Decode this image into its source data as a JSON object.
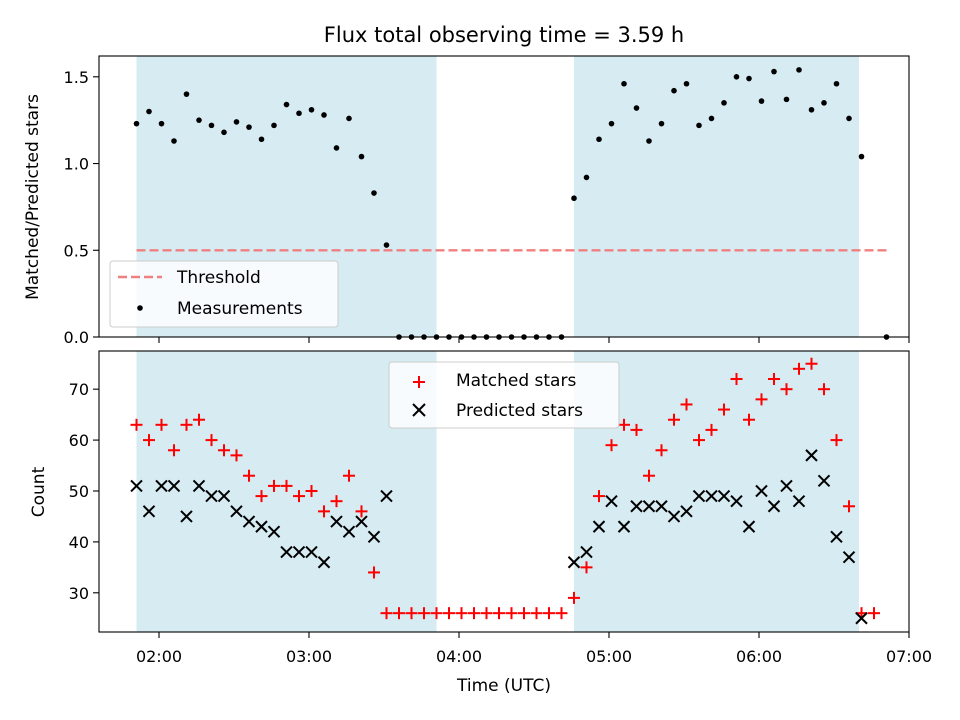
{
  "title": "Flux total observing time = 3.59 h",
  "colors": {
    "shade": "#add8e6",
    "threshold": "#f08080",
    "measurements": "#000000",
    "matched": "#ff0000",
    "predicted": "#000000"
  },
  "chart_data": [
    {
      "type": "scatter",
      "panel": "top",
      "ylabel": "Matched/Predicted stars",
      "ylim": [
        0,
        1.62
      ],
      "yticks": [
        0.0,
        0.5,
        1.0,
        1.5
      ],
      "ytick_labels": [
        "0.0",
        "0.5",
        "1.0",
        "1.5"
      ],
      "xlim": [
        "01:36",
        "07:00"
      ],
      "legend": {
        "placement": "lower-left",
        "entries": [
          "Threshold",
          "Measurements"
        ]
      },
      "shaded_intervals": [
        [
          "01:51",
          "03:51"
        ],
        [
          "04:46",
          "06:40"
        ]
      ],
      "threshold": {
        "name": "Threshold",
        "value": 0.5,
        "x_range": [
          "01:51",
          "06:51"
        ],
        "style": "dashed"
      },
      "series": [
        {
          "name": "Measurements",
          "marker": "dot",
          "x": [
            "01:51",
            "01:56",
            "02:01",
            "02:06",
            "02:11",
            "02:16",
            "02:21",
            "02:26",
            "02:31",
            "02:36",
            "02:41",
            "02:46",
            "02:51",
            "02:56",
            "03:01",
            "03:06",
            "03:11",
            "03:16",
            "03:21",
            "03:26",
            "03:31",
            "03:36",
            "03:41",
            "03:46",
            "03:51",
            "03:56",
            "04:01",
            "04:06",
            "04:11",
            "04:16",
            "04:21",
            "04:26",
            "04:31",
            "04:36",
            "04:41",
            "04:46",
            "04:51",
            "04:56",
            "05:01",
            "05:06",
            "05:11",
            "05:16",
            "05:21",
            "05:26",
            "05:31",
            "05:36",
            "05:41",
            "05:46",
            "05:51",
            "05:56",
            "06:01",
            "06:06",
            "06:11",
            "06:16",
            "06:21",
            "06:26",
            "06:31",
            "06:36",
            "06:41",
            "06:51"
          ],
          "y": [
            1.23,
            1.3,
            1.23,
            1.13,
            1.4,
            1.25,
            1.22,
            1.18,
            1.24,
            1.21,
            1.14,
            1.22,
            1.34,
            1.29,
            1.31,
            1.28,
            1.09,
            1.26,
            1.04,
            0.83,
            0.53,
            0,
            0,
            0,
            0,
            0,
            0,
            0,
            0,
            0,
            0,
            0,
            0,
            0,
            0,
            0.8,
            0.92,
            1.14,
            1.23,
            1.46,
            1.32,
            1.13,
            1.23,
            1.42,
            1.46,
            1.22,
            1.26,
            1.35,
            1.5,
            1.49,
            1.36,
            1.53,
            1.37,
            1.54,
            1.31,
            1.35,
            1.46,
            1.26,
            1.04,
            0
          ]
        }
      ]
    },
    {
      "type": "scatter",
      "panel": "bottom",
      "ylabel": "Count",
      "xlabel": "Time (UTC)",
      "ylim": [
        22.3,
        77.5
      ],
      "yticks": [
        30,
        40,
        50,
        60,
        70
      ],
      "ytick_labels": [
        "30",
        "40",
        "50",
        "60",
        "70"
      ],
      "xlim": [
        "01:36",
        "07:00"
      ],
      "xticks": [
        "02:00",
        "03:00",
        "04:00",
        "05:00",
        "06:00",
        "07:00"
      ],
      "xtick_labels": [
        "02:00",
        "03:00",
        "04:00",
        "05:00",
        "06:00",
        "07:00"
      ],
      "legend": {
        "placement": "top-center",
        "entries": [
          "Matched stars",
          "Predicted stars"
        ]
      },
      "shaded_intervals": [
        [
          "01:51",
          "03:51"
        ],
        [
          "04:46",
          "06:40"
        ]
      ],
      "series": [
        {
          "name": "Matched stars",
          "marker": "plus",
          "x": [
            "01:51",
            "01:56",
            "02:01",
            "02:06",
            "02:11",
            "02:16",
            "02:21",
            "02:26",
            "02:31",
            "02:36",
            "02:41",
            "02:46",
            "02:51",
            "02:56",
            "03:01",
            "03:06",
            "03:11",
            "03:16",
            "03:21",
            "03:26",
            "03:31",
            "03:36",
            "03:41",
            "03:46",
            "03:51",
            "03:56",
            "04:01",
            "04:06",
            "04:11",
            "04:16",
            "04:21",
            "04:26",
            "04:31",
            "04:36",
            "04:41",
            "04:46",
            "04:51",
            "04:56",
            "05:01",
            "05:06",
            "05:11",
            "05:16",
            "05:21",
            "05:26",
            "05:31",
            "05:36",
            "05:41",
            "05:46",
            "05:51",
            "05:56",
            "06:01",
            "06:06",
            "06:11",
            "06:16",
            "06:21",
            "06:26",
            "06:31",
            "06:36",
            "06:41",
            "06:46"
          ],
          "y": [
            63,
            60,
            63,
            58,
            63,
            64,
            60,
            58,
            57,
            53,
            49,
            51,
            51,
            49,
            50,
            46,
            48,
            53,
            46,
            34,
            26,
            26,
            26,
            26,
            26,
            26,
            26,
            26,
            26,
            26,
            26,
            26,
            26,
            26,
            26,
            29,
            35,
            49,
            59,
            63,
            62,
            53,
            58,
            64,
            67,
            60,
            62,
            66,
            72,
            64,
            68,
            72,
            70,
            74,
            75,
            70,
            60,
            47,
            26,
            26
          ]
        },
        {
          "name": "Predicted stars",
          "marker": "x",
          "x": [
            "01:51",
            "01:56",
            "02:01",
            "02:06",
            "02:11",
            "02:16",
            "02:21",
            "02:26",
            "02:31",
            "02:36",
            "02:41",
            "02:46",
            "02:51",
            "02:56",
            "03:01",
            "03:06",
            "03:11",
            "03:16",
            "03:21",
            "03:26",
            "03:31",
            "04:46",
            "04:51",
            "04:56",
            "05:01",
            "05:06",
            "05:11",
            "05:16",
            "05:21",
            "05:26",
            "05:31",
            "05:36",
            "05:41",
            "05:46",
            "05:51",
            "05:56",
            "06:01",
            "06:06",
            "06:11",
            "06:16",
            "06:21",
            "06:26",
            "06:31",
            "06:36",
            "06:41"
          ],
          "y": [
            51,
            46,
            51,
            51,
            45,
            51,
            49,
            49,
            46,
            44,
            43,
            42,
            38,
            38,
            38,
            36,
            44,
            42,
            44,
            41,
            49,
            36,
            38,
            43,
            48,
            43,
            47,
            47,
            47,
            45,
            46,
            49,
            49,
            49,
            48,
            43,
            50,
            47,
            51,
            48,
            57,
            52,
            41,
            37,
            25
          ]
        }
      ]
    }
  ]
}
